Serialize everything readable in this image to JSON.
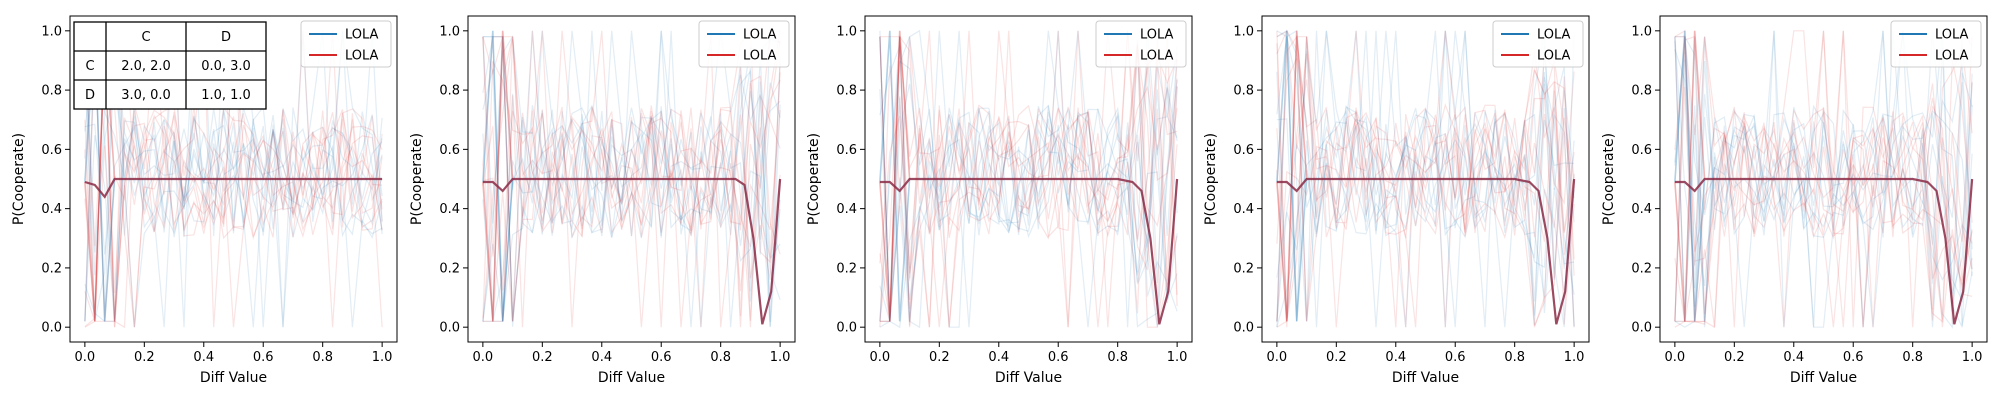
{
  "colors": {
    "series_a": "#1f77b4",
    "series_b": "#d62728",
    "mean_line": "#8b2a45"
  },
  "chart_data": [
    {
      "type": "line",
      "xlabel": "Diff Value",
      "ylabel": "P(Cooperate)",
      "xlim": [
        -0.05,
        1.05
      ],
      "ylim": [
        -0.05,
        1.05
      ],
      "xticks": [
        "0.0",
        "0.2",
        "0.4",
        "0.6",
        "0.8",
        "1.0"
      ],
      "yticks": [
        "0.0",
        "0.2",
        "0.4",
        "0.6",
        "0.8",
        "1.0"
      ],
      "legend": [
        "LOLA",
        "LOLA"
      ],
      "legend_position": "top-right",
      "grid": false,
      "payoff_table": {
        "col_headers": [
          "C",
          "D"
        ],
        "rows": [
          {
            "label": "C",
            "cells": [
              "2.0, 2.0",
              "0.0, 3.0"
            ]
          },
          {
            "label": "D",
            "cells": [
              "3.0, 0.0",
              "1.0, 1.0"
            ]
          }
        ]
      },
      "mean_series": {
        "x": [
          0.0,
          0.0333,
          0.0667,
          0.1,
          0.2,
          0.3,
          0.4,
          0.5,
          0.6,
          0.7,
          0.8,
          0.85,
          0.9,
          0.95,
          1.0
        ],
        "y": [
          0.49,
          0.48,
          0.44,
          0.5,
          0.5,
          0.5,
          0.5,
          0.5,
          0.5,
          0.5,
          0.5,
          0.5,
          0.5,
          0.5,
          0.5
        ]
      }
    },
    {
      "type": "line",
      "xlabel": "Diff Value",
      "ylabel": "P(Cooperate)",
      "xlim": [
        -0.05,
        1.05
      ],
      "ylim": [
        -0.05,
        1.05
      ],
      "xticks": [
        "0.0",
        "0.2",
        "0.4",
        "0.6",
        "0.8",
        "1.0"
      ],
      "yticks": [
        "0.0",
        "0.2",
        "0.4",
        "0.6",
        "0.8",
        "1.0"
      ],
      "legend": [
        "LOLA",
        "LOLA"
      ],
      "legend_position": "top-right",
      "grid": false,
      "mean_series": {
        "x": [
          0.0,
          0.0333,
          0.0667,
          0.1,
          0.2,
          0.3,
          0.4,
          0.5,
          0.6,
          0.7,
          0.8,
          0.85,
          0.88,
          0.91,
          0.94,
          0.97,
          1.0
        ],
        "y": [
          0.49,
          0.49,
          0.46,
          0.5,
          0.5,
          0.5,
          0.5,
          0.5,
          0.5,
          0.5,
          0.5,
          0.5,
          0.48,
          0.3,
          0.01,
          0.12,
          0.5
        ]
      }
    },
    {
      "type": "line",
      "xlabel": "Diff Value",
      "ylabel": "P(Cooperate)",
      "xlim": [
        -0.05,
        1.05
      ],
      "ylim": [
        -0.05,
        1.05
      ],
      "xticks": [
        "0.0",
        "0.2",
        "0.4",
        "0.6",
        "0.8",
        "1.0"
      ],
      "yticks": [
        "0.0",
        "0.2",
        "0.4",
        "0.6",
        "0.8",
        "1.0"
      ],
      "legend": [
        "LOLA",
        "LOLA"
      ],
      "legend_position": "top-right",
      "grid": false,
      "mean_series": {
        "x": [
          0.0,
          0.0333,
          0.0667,
          0.1,
          0.2,
          0.3,
          0.4,
          0.5,
          0.6,
          0.7,
          0.8,
          0.85,
          0.88,
          0.91,
          0.94,
          0.97,
          1.0
        ],
        "y": [
          0.49,
          0.49,
          0.46,
          0.5,
          0.5,
          0.5,
          0.5,
          0.5,
          0.5,
          0.5,
          0.5,
          0.49,
          0.46,
          0.3,
          0.01,
          0.12,
          0.5
        ]
      }
    },
    {
      "type": "line",
      "xlabel": "Diff Value",
      "ylabel": "P(Cooperate)",
      "xlim": [
        -0.05,
        1.05
      ],
      "ylim": [
        -0.05,
        1.05
      ],
      "xticks": [
        "0.0",
        "0.2",
        "0.4",
        "0.6",
        "0.8",
        "1.0"
      ],
      "yticks": [
        "0.0",
        "0.2",
        "0.4",
        "0.6",
        "0.8",
        "1.0"
      ],
      "legend": [
        "LOLA",
        "LOLA"
      ],
      "legend_position": "top-right",
      "grid": false,
      "mean_series": {
        "x": [
          0.0,
          0.0333,
          0.0667,
          0.1,
          0.2,
          0.3,
          0.4,
          0.5,
          0.6,
          0.7,
          0.8,
          0.85,
          0.88,
          0.91,
          0.94,
          0.97,
          1.0
        ],
        "y": [
          0.49,
          0.49,
          0.46,
          0.5,
          0.5,
          0.5,
          0.5,
          0.5,
          0.5,
          0.5,
          0.5,
          0.49,
          0.46,
          0.3,
          0.01,
          0.12,
          0.5
        ]
      }
    },
    {
      "type": "line",
      "xlabel": "Diff Value",
      "ylabel": "P(Cooperate)",
      "xlim": [
        -0.05,
        1.05
      ],
      "ylim": [
        -0.05,
        1.05
      ],
      "xticks": [
        "0.0",
        "0.2",
        "0.4",
        "0.6",
        "0.8",
        "1.0"
      ],
      "yticks": [
        "0.0",
        "0.2",
        "0.4",
        "0.6",
        "0.8",
        "1.0"
      ],
      "legend": [
        "LOLA",
        "LOLA"
      ],
      "legend_position": "top-right",
      "grid": false,
      "mean_series": {
        "x": [
          0.0,
          0.0333,
          0.0667,
          0.1,
          0.2,
          0.3,
          0.4,
          0.5,
          0.6,
          0.7,
          0.8,
          0.85,
          0.88,
          0.91,
          0.94,
          0.97,
          1.0
        ],
        "y": [
          0.49,
          0.49,
          0.46,
          0.5,
          0.5,
          0.5,
          0.5,
          0.5,
          0.5,
          0.5,
          0.5,
          0.49,
          0.46,
          0.3,
          0.01,
          0.12,
          0.5
        ]
      }
    }
  ]
}
